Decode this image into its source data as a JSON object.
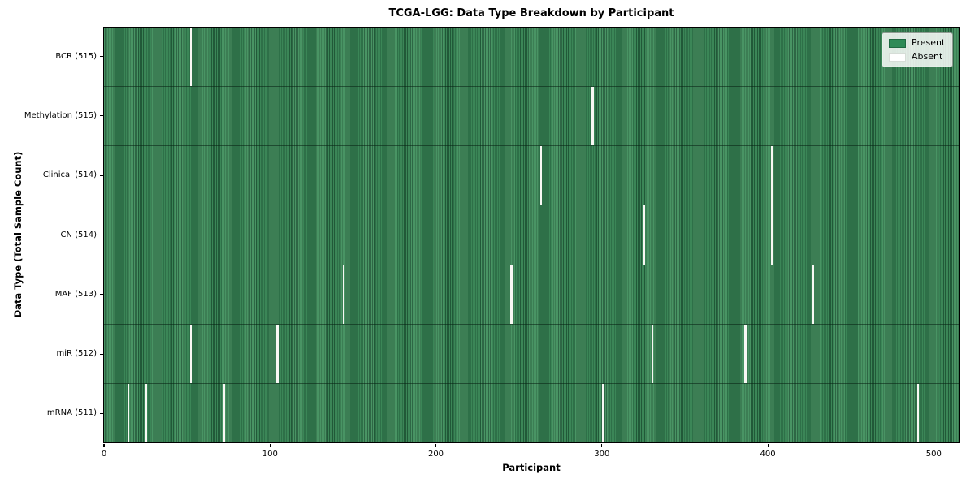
{
  "title": "TCGA-LGG: Data Type Breakdown by Participant",
  "colors": {
    "present": "#2e8b57",
    "present_stripe_light": "#3f8e5c",
    "present_stripe_dark": "#235f3b",
    "absent": "#f8f8f4"
  },
  "legend": {
    "present_label": "Present",
    "absent_label": "Absent"
  },
  "chart_data": {
    "type": "heatmap",
    "title": "TCGA-LGG: Data Type Breakdown by Participant",
    "xlabel": "Participant",
    "ylabel": "Data Type (Total Sample Count)",
    "n_participants": 516,
    "xlim": [
      -0.5,
      515.5
    ],
    "x_ticks": [
      0,
      100,
      200,
      300,
      400,
      500
    ],
    "grid": false,
    "legend_entries": [
      "Present",
      "Absent"
    ],
    "legend_position": "upper right",
    "cell_values": "binary present/absent per participant; all cells present except listed absences",
    "rows": [
      {
        "label": "BCR (515)",
        "total_present": 515,
        "absent_participants": [
          52
        ]
      },
      {
        "label": "Methylation (515)",
        "total_present": 515,
        "absent_participants": [
          294
        ]
      },
      {
        "label": "Clinical (514)",
        "total_present": 514,
        "absent_participants": [
          263,
          402
        ]
      },
      {
        "label": "CN (514)",
        "total_present": 514,
        "absent_participants": [
          325,
          402
        ]
      },
      {
        "label": "MAF (513)",
        "total_present": 513,
        "absent_participants": [
          144,
          245,
          427
        ]
      },
      {
        "label": "miR (512)",
        "total_present": 512,
        "absent_participants": [
          52,
          104,
          330,
          386
        ]
      },
      {
        "label": "mRNA (511)",
        "total_present": 511,
        "absent_participants": [
          14,
          25,
          72,
          300,
          490
        ]
      }
    ]
  }
}
